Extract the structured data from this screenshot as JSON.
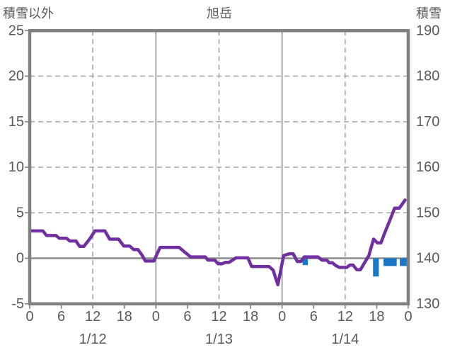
{
  "header": {
    "left_axis_title": "積雪以外",
    "chart_title": "旭岳",
    "right_axis_title": "積雪"
  },
  "chart_data": {
    "type": "line",
    "title": "旭岳",
    "x_axis": {
      "unit": "hours",
      "range": [
        0,
        72
      ],
      "tick_interval_hours": 6,
      "tick_labels": [
        "0",
        "6",
        "12",
        "18",
        "0",
        "6",
        "12",
        "18",
        "0",
        "6",
        "12",
        "18",
        "0"
      ],
      "day_labels": [
        {
          "label": "1/12",
          "hour": 12
        },
        {
          "label": "1/13",
          "hour": 36
        },
        {
          "label": "1/14",
          "hour": 60
        }
      ],
      "solid_gridline_hours": [
        24,
        48
      ],
      "dashed_gridline_hours": [
        12,
        36,
        60
      ]
    },
    "left_axis": {
      "title": "積雪以外",
      "range": [
        -5,
        25
      ],
      "ticks": [
        25,
        20,
        15,
        10,
        5,
        0,
        -5
      ],
      "dashed_gridline_values": [
        20,
        15,
        10,
        5
      ],
      "zero_line_value": 0
    },
    "right_axis": {
      "title": "積雪",
      "range": [
        130,
        190
      ],
      "ticks": [
        190,
        180,
        170,
        160,
        150,
        140,
        130
      ]
    },
    "series": [
      {
        "name": "積雪以外",
        "type": "line",
        "axis": "left",
        "color": "#7030a0",
        "points": [
          [
            0,
            3.0
          ],
          [
            2.5,
            3.0
          ],
          [
            3.2,
            2.5
          ],
          [
            5,
            2.5
          ],
          [
            5.6,
            2.2
          ],
          [
            7,
            2.2
          ],
          [
            7.6,
            1.9
          ],
          [
            8.8,
            1.9
          ],
          [
            9.5,
            1.3
          ],
          [
            10.3,
            1.3
          ],
          [
            11.5,
            2.2
          ],
          [
            12.4,
            3.0
          ],
          [
            14.3,
            3.0
          ],
          [
            15.2,
            2.1
          ],
          [
            16.9,
            2.1
          ],
          [
            17.9,
            1.35
          ],
          [
            19,
            1.35
          ],
          [
            19.8,
            0.95
          ],
          [
            20.6,
            0.95
          ],
          [
            21.3,
            0.4
          ],
          [
            22,
            -0.3
          ],
          [
            23.6,
            -0.3
          ],
          [
            24.8,
            1.2
          ],
          [
            28.4,
            1.2
          ],
          [
            30.6,
            0.15
          ],
          [
            33.4,
            0.15
          ],
          [
            33.9,
            -0.2
          ],
          [
            35.2,
            -0.2
          ],
          [
            35.8,
            -0.6
          ],
          [
            36.6,
            -0.6
          ],
          [
            37.2,
            -0.45
          ],
          [
            37.9,
            -0.45
          ],
          [
            38.6,
            -0.2
          ],
          [
            39.2,
            0.05
          ],
          [
            41.5,
            0.05
          ],
          [
            42.2,
            -0.9
          ],
          [
            45.5,
            -0.9
          ],
          [
            46.3,
            -1.3
          ],
          [
            47.2,
            -2.9
          ],
          [
            48.3,
            0.3
          ],
          [
            49.4,
            0.5
          ],
          [
            50.1,
            0.5
          ],
          [
            50.9,
            -0.35
          ],
          [
            51.6,
            -0.35
          ],
          [
            52.2,
            0.15
          ],
          [
            54.8,
            0.15
          ],
          [
            55.6,
            -0.2
          ],
          [
            56.5,
            -0.2
          ],
          [
            57.0,
            -0.5
          ],
          [
            57.6,
            -0.5
          ],
          [
            58.2,
            -0.8
          ],
          [
            58.9,
            -1.0
          ],
          [
            60.3,
            -1.0
          ],
          [
            60.9,
            -0.75
          ],
          [
            61.5,
            -0.75
          ],
          [
            62.2,
            -1.25
          ],
          [
            62.9,
            -1.25
          ],
          [
            64.5,
            0.3
          ],
          [
            65.4,
            2.1
          ],
          [
            66.1,
            1.7
          ],
          [
            66.8,
            1.7
          ],
          [
            67.6,
            2.9
          ],
          [
            68.6,
            4.3
          ],
          [
            69.4,
            5.5
          ],
          [
            70.3,
            5.5
          ],
          [
            71.4,
            6.4
          ]
        ]
      },
      {
        "name": "積雪",
        "type": "bar",
        "axis": "right",
        "color": "#1878c8",
        "baseline": 140,
        "bars": [
          {
            "start_hour": 51.9,
            "end_hour": 52.9,
            "value": 138.5
          },
          {
            "start_hour": 65.3,
            "end_hour": 66.4,
            "value": 136.0
          },
          {
            "start_hour": 67.3,
            "end_hour": 69.8,
            "value": 138.3
          },
          {
            "start_hour": 70.4,
            "end_hour": 71.8,
            "value": 138.3
          }
        ]
      }
    ]
  },
  "colors": {
    "plot_border": "#808080",
    "grid_dashed": "#a6a6a6",
    "grid_solid": "#909090",
    "zero_line": "#8c8c8c",
    "tick_mark": "#808080",
    "label_text": "#595959",
    "background": "#ffffff"
  }
}
